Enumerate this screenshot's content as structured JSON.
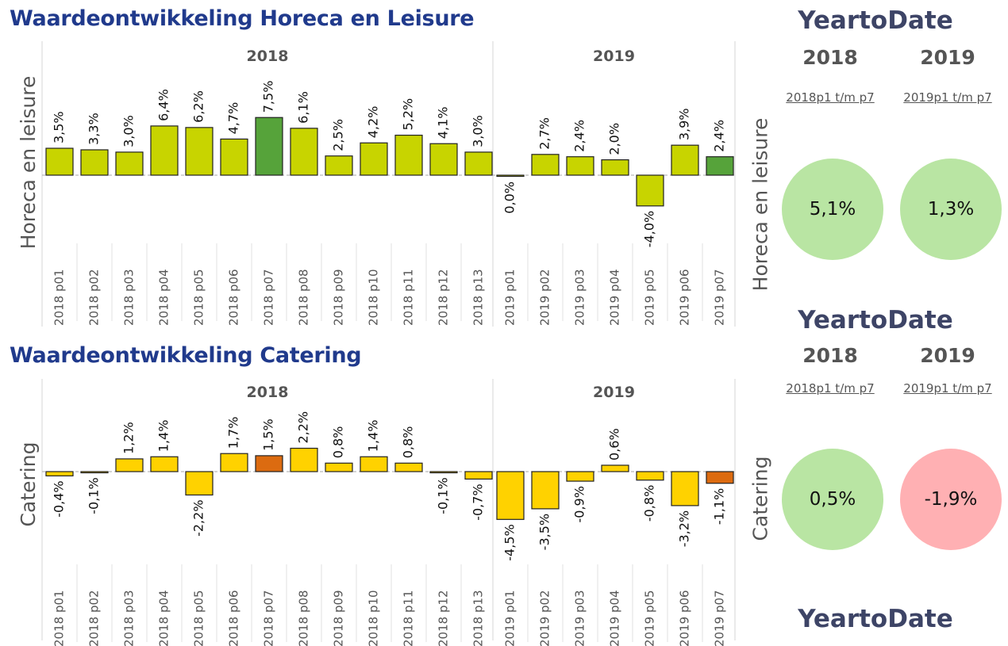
{
  "titles": {
    "top": "Waardeontwikkeling Horeca en Leisure",
    "bottom": "Waardeontwikkeling Catering"
  },
  "colors": {
    "lime": "#c8d400",
    "green": "#56a33a",
    "yellow": "#ffd200",
    "orange": "#dc6b10",
    "circle_green": "#b9e5a3",
    "circle_red": "#ffb0b3"
  },
  "chart_data": [
    {
      "type": "bar",
      "ylabel": "Horeca en leisure",
      "groups": [
        "2018",
        "2019"
      ],
      "categories": [
        "2018 p01",
        "2018 p02",
        "2018 p03",
        "2018 p04",
        "2018 p05",
        "2018 p06",
        "2018 p07",
        "2018 p08",
        "2018 p09",
        "2018 p10",
        "2018 p11",
        "2018 p12",
        "2018 p13",
        "2019 p01",
        "2019 p02",
        "2019 p03",
        "2019 p04",
        "2019 p05",
        "2019 p06",
        "2019 p07"
      ],
      "values": [
        3.5,
        3.3,
        3.0,
        6.4,
        6.2,
        4.7,
        7.5,
        6.1,
        2.5,
        4.2,
        5.2,
        4.1,
        3.0,
        0.0,
        2.7,
        2.4,
        2.0,
        -4.0,
        3.9,
        2.4
      ],
      "labels": [
        "3,5%",
        "3,3%",
        "3,0%",
        "6,4%",
        "6,2%",
        "4,7%",
        "7,5%",
        "6,1%",
        "2,5%",
        "4,2%",
        "5,2%",
        "4,1%",
        "3,0%",
        "0,0%",
        "2,7%",
        "2,4%",
        "2,0%",
        "-4,0%",
        "3,9%",
        "2,4%"
      ],
      "highlight": [
        6,
        19
      ]
    },
    {
      "type": "bar",
      "ylabel": "Catering",
      "groups": [
        "2018",
        "2019"
      ],
      "categories": [
        "2018 p01",
        "2018 p02",
        "2018 p03",
        "2018 p04",
        "2018 p05",
        "2018 p06",
        "2018 p07",
        "2018 p08",
        "2018 p09",
        "2018 p10",
        "2018 p11",
        "2018 p12",
        "2018 p13",
        "2019 p01",
        "2019 p02",
        "2019 p03",
        "2019 p04",
        "2019 p05",
        "2019 p06",
        "2019 p07"
      ],
      "values": [
        -0.4,
        -0.1,
        1.2,
        1.4,
        -2.2,
        1.7,
        1.5,
        2.2,
        0.8,
        1.4,
        0.8,
        -0.1,
        -0.7,
        -4.5,
        -3.5,
        -0.9,
        0.6,
        -0.8,
        -3.2,
        -1.1
      ],
      "labels": [
        "-0,4%",
        "-0,1%",
        "1,2%",
        "1,4%",
        "-2,2%",
        "1,7%",
        "1,5%",
        "2,2%",
        "0,8%",
        "1,4%",
        "0,8%",
        "-0,1%",
        "-0,7%",
        "-4,5%",
        "-3,5%",
        "-0,9%",
        "0,6%",
        "-0,8%",
        "-3,2%",
        "-1,1%"
      ],
      "highlight": [
        6,
        19
      ]
    }
  ],
  "ytd": {
    "heading": "YeartoDate",
    "top": {
      "label": "Horeca en leisure",
      "years": [
        "2018",
        "2019"
      ],
      "subs": [
        "2018p1 t/m p7",
        "2019p1 t/m p7"
      ],
      "values": [
        "5,1%",
        "1,3%"
      ]
    },
    "bottom": {
      "label": "Catering",
      "years": [
        "2018",
        "2019"
      ],
      "subs": [
        "2018p1 t/m p7",
        "2019p1 t/m p7"
      ],
      "values": [
        "0,5%",
        "-1,9%"
      ]
    }
  }
}
